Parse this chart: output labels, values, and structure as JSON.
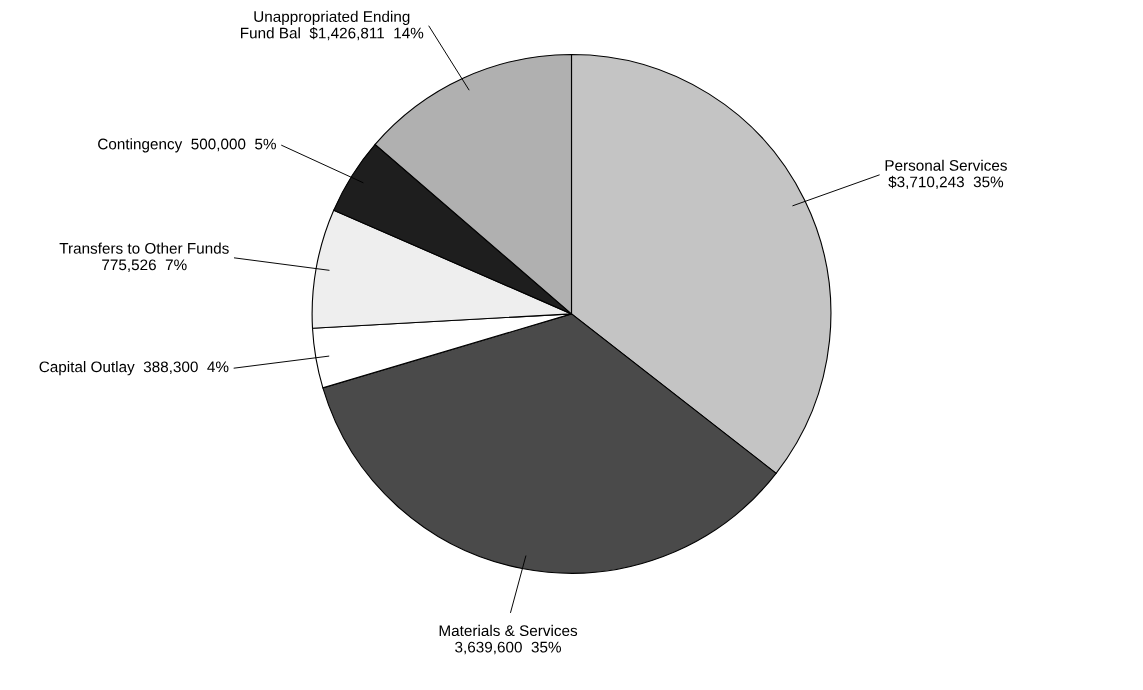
{
  "chart_data": {
    "type": "pie",
    "categories": [
      "Personal Services",
      "Materials & Services",
      "Capital Outlay",
      "Transfers to Other Funds",
      "Contingency",
      "Unappropriated Ending\nFund Bal"
    ],
    "values": [
      3710243,
      3639600,
      388300,
      775526,
      500000,
      1426811
    ],
    "value_labels": [
      "$3,710,243  35%",
      "3,639,600  35%",
      "388,300  4%",
      "775,526  7%",
      "500,000  5%",
      "$1,426,811  14%"
    ],
    "colors": [
      "#c4c4c4",
      "#4a4a4a",
      "#ffffff",
      "#eeeeee",
      "#1e1e1e",
      "#b0b0b0"
    ]
  }
}
